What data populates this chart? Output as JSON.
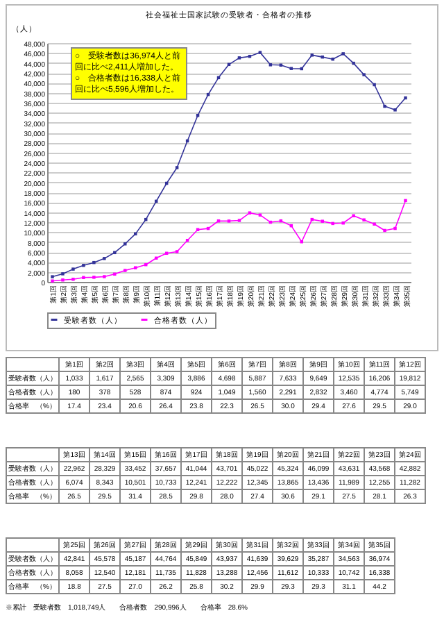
{
  "chart_data": [
    {
      "type": "line",
      "title": "社会福祉士国家試験の受験者・合格者の推移",
      "ylabel": "（人）",
      "categories": [
        "第1回",
        "第2回",
        "第3回",
        "第4回",
        "第5回",
        "第6回",
        "第7回",
        "第8回",
        "第9回",
        "第10回",
        "第11回",
        "第12回",
        "第13回",
        "第14回",
        "第15回",
        "第16回",
        "第17回",
        "第18回",
        "第19回",
        "第20回",
        "第21回",
        "第22回",
        "第23回",
        "第24回",
        "第25回",
        "第26回",
        "第27回",
        "第28回",
        "第29回",
        "第30回",
        "第31回",
        "第32回",
        "第33回",
        "第34回",
        "第35回"
      ],
      "series": [
        {
          "name": "受験者数（人）",
          "color": "#333399",
          "values": [
            1033,
            1617,
            2565,
            3309,
            3886,
            4698,
            5887,
            7633,
            9649,
            12535,
            16206,
            19812,
            22962,
            28329,
            33452,
            37657,
            41044,
            43701,
            45022,
            45324,
            46099,
            43631,
            43568,
            42882,
            42841,
            45578,
            45187,
            44764,
            45849,
            43937,
            41639,
            39629,
            35287,
            34563,
            36974
          ]
        },
        {
          "name": "合格者数（人）",
          "color": "#ff00ff",
          "values": [
            180,
            378,
            528,
            874,
            924,
            1049,
            1560,
            2291,
            2832,
            3460,
            4774,
            5749,
            6074,
            8343,
            10501,
            10733,
            12241,
            12222,
            12345,
            13865,
            13436,
            11989,
            12255,
            11282,
            8058,
            12540,
            12181,
            11735,
            11828,
            13288,
            12456,
            11612,
            10333,
            10742,
            16338
          ]
        }
      ],
      "ylim": [
        0,
        48000
      ],
      "yticks": [
        0,
        {
          "value": 2000,
          "label": "2,000"
        },
        {
          "value": 4000,
          "label": "4,000"
        },
        {
          "value": 6000,
          "label": "6,000"
        },
        {
          "value": 8000,
          "label": "8,000"
        },
        {
          "value": 10000,
          "label": "10,000"
        },
        {
          "value": 12000,
          "label": "12,000"
        },
        {
          "value": 14000,
          "label": "14,000"
        },
        {
          "value": 16000,
          "label": "16,000"
        },
        {
          "value": 18000,
          "label": "18,000"
        },
        {
          "value": 20000,
          "label": "20,000"
        },
        {
          "value": 22000,
          "label": "22,000"
        },
        {
          "value": 24000,
          "label": "24,000"
        },
        {
          "value": 26000,
          "label": "26,000"
        },
        {
          "value": 28000,
          "label": "28,000"
        },
        {
          "value": 30000,
          "label": "30,000"
        },
        {
          "value": 32000,
          "label": "32,000"
        },
        {
          "value": 34000,
          "label": "34,000"
        },
        {
          "value": 36000,
          "label": "36,000"
        },
        {
          "value": 38000,
          "label": "38,000"
        },
        {
          "value": 40000,
          "label": "40,000"
        },
        {
          "value": 42000,
          "label": "42,000"
        },
        {
          "value": 44000,
          "label": "44,000"
        },
        {
          "value": 46000,
          "label": "46,000"
        },
        {
          "value": 48000,
          "label": "48,000"
        }
      ],
      "grid": "y",
      "legend": "bottom",
      "marker": "square",
      "line_style": "solid",
      "annotations": [
        "○　受験者数は36,974人と前回に比べ2,411人増加した。",
        "○　合格者数は16,338人と前回に比べ5,596人増加した。"
      ]
    },
    {
      "type": "other",
      "categories": [
        "第1回",
        "第2回",
        "第3回",
        "第4回",
        "第5回",
        "第6回",
        "第7回",
        "第8回",
        "第9回",
        "第10回",
        "第11回",
        "第12回",
        "第13回",
        "第14回",
        "第15回",
        "第16回",
        "第17回",
        "第18回",
        "第19回",
        "第20回",
        "第21回",
        "第22回",
        "第23回",
        "第24回",
        "第25回",
        "第26回",
        "第27回",
        "第28回",
        "第29回",
        "第30回",
        "第31回",
        "第32回",
        "第33回",
        "第34回",
        "第35回"
      ],
      "series": [
        {
          "name": "受験者数（人）",
          "values": [
            1033,
            1617,
            2565,
            3309,
            3886,
            4698,
            5887,
            7633,
            9649,
            12535,
            16206,
            19812,
            22962,
            28329,
            33452,
            37657,
            41044,
            43701,
            45022,
            45324,
            46099,
            43631,
            43568,
            42882,
            42841,
            45578,
            45187,
            44764,
            45849,
            43937,
            41639,
            39629,
            35287,
            34563,
            36974
          ],
          "value_labels": [
            "1,033",
            "1,617",
            "2,565",
            "3,309",
            "3,886",
            "4,698",
            "5,887",
            "7,633",
            "9,649",
            "12,535",
            "16,206",
            "19,812",
            "22,962",
            "28,329",
            "33,452",
            "37,657",
            "41,044",
            "43,701",
            "45,022",
            "45,324",
            "46,099",
            "43,631",
            "43,568",
            "42,882",
            "42,841",
            "45,578",
            "45,187",
            "44,764",
            "45,849",
            "43,937",
            "41,639",
            "39,629",
            "35,287",
            "34,563",
            "36,974"
          ]
        },
        {
          "name": "合格者数（人）",
          "values": [
            180,
            378,
            528,
            874,
            924,
            1049,
            1560,
            2291,
            2832,
            3460,
            4774,
            5749,
            6074,
            8343,
            10501,
            10733,
            12241,
            12222,
            12345,
            13865,
            13436,
            11989,
            12255,
            11282,
            8058,
            12540,
            12181,
            11735,
            11828,
            13288,
            12456,
            11612,
            10333,
            10742,
            16338
          ],
          "value_labels": [
            "180",
            "378",
            "528",
            "874",
            "924",
            "1,049",
            "1,560",
            "2,291",
            "2,832",
            "3,460",
            "4,774",
            "5,749",
            "6,074",
            "8,343",
            "10,501",
            "10,733",
            "12,241",
            "12,222",
            "12,345",
            "13,865",
            "13,436",
            "11,989",
            "12,255",
            "11,282",
            "8,058",
            "12,540",
            "12,181",
            "11,735",
            "11,828",
            "13,288",
            "12,456",
            "11,612",
            "10,333",
            "10,742",
            "16,338"
          ]
        },
        {
          "name": "合格率　（%）",
          "values": [
            17.4,
            23.4,
            20.6,
            26.4,
            23.8,
            22.3,
            26.5,
            30.0,
            29.4,
            27.6,
            29.5,
            29.0,
            26.5,
            29.5,
            31.4,
            28.5,
            29.8,
            28.0,
            27.4,
            30.6,
            29.1,
            27.5,
            28.1,
            26.3,
            18.8,
            27.5,
            27.0,
            26.2,
            25.8,
            30.2,
            29.9,
            29.3,
            29.3,
            31.1,
            44.2
          ],
          "value_labels": [
            "17.4",
            "23.4",
            "20.6",
            "26.4",
            "23.8",
            "22.3",
            "26.5",
            "30.0",
            "29.4",
            "27.6",
            "29.5",
            "29.0",
            "26.5",
            "29.5",
            "31.4",
            "28.5",
            "29.8",
            "28.0",
            "27.4",
            "30.6",
            "29.1",
            "27.5",
            "28.1",
            "26.3",
            "18.8",
            "27.5",
            "27.0",
            "26.2",
            "25.8",
            "30.2",
            "29.9",
            "29.3",
            "29.3",
            "31.1",
            "44.2"
          ]
        }
      ],
      "annotations": [
        "※累計　受験者数　1,018,749人　　合格者数　290,996人　　合格率　28.6%"
      ]
    }
  ]
}
